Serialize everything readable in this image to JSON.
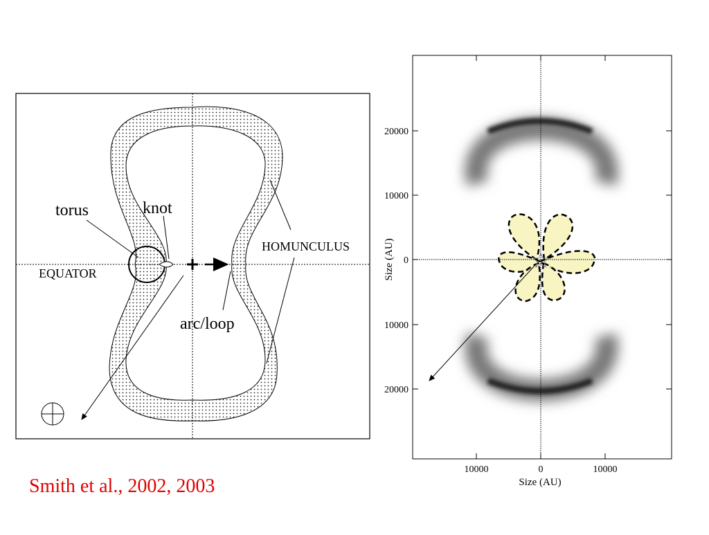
{
  "left_diagram": {
    "labels": {
      "torus": "torus",
      "knot": "knot",
      "homunculus": "HOMUNCULUS",
      "equator": "EQUATOR",
      "arc_loop": "arc/loop"
    }
  },
  "right_image": {
    "y_axis": {
      "title": "Size (AU)",
      "ticks": [
        "20000",
        "10000",
        "0",
        "10000",
        "20000"
      ]
    },
    "x_axis": {
      "title": "Size (AU)",
      "ticks": [
        "10000",
        "0",
        "10000"
      ]
    }
  },
  "citation": "Smith et al., 2002, 2003"
}
